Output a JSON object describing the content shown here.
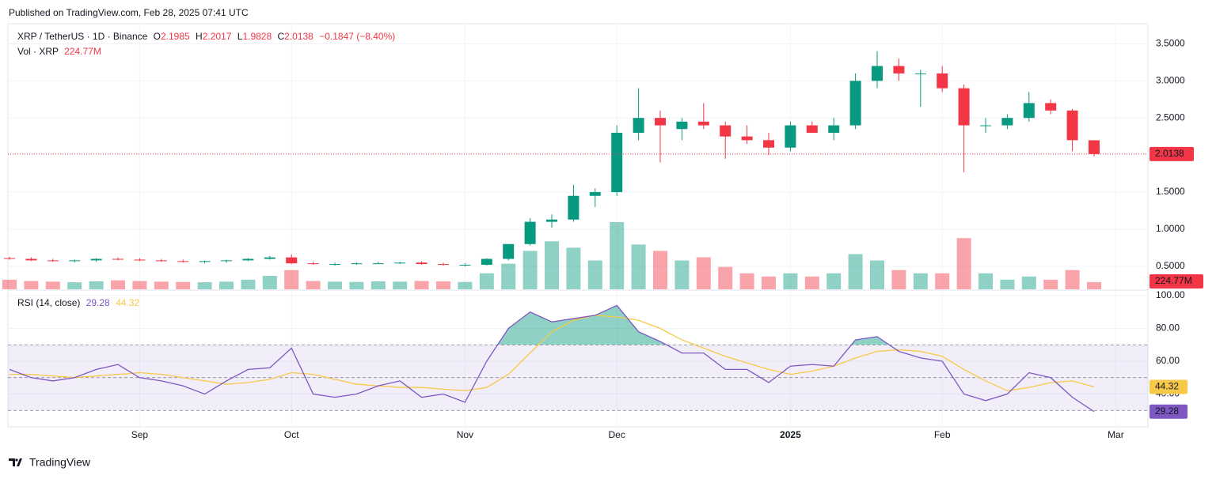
{
  "header": {
    "published": "Published on TradingView.com, Feb 28, 2025 07:41 UTC",
    "brand": "TradingView"
  },
  "chart_data": {
    "type": "candlestick",
    "symbol": "XRP / TetherUS · 1D · Binance",
    "ohlc_letters": {
      "open": "O",
      "high": "H",
      "low": "L",
      "close": "C"
    },
    "change_label": "−0.1847 (−8.40%)",
    "volume_title": "Vol · XRP",
    "volume_last_label": "224.77M",
    "rsi_title": "RSI (14, close)",
    "up_color": "#089981",
    "down_color": "#f23645",
    "rsi_color": "#7e57c2",
    "rsi_ma_color": "#f7c948",
    "categories": [
      null,
      null,
      null,
      null,
      null,
      null,
      "Sep",
      null,
      null,
      null,
      null,
      null,
      null,
      "Oct",
      null,
      null,
      null,
      null,
      null,
      null,
      null,
      "Nov",
      null,
      null,
      null,
      null,
      null,
      null,
      "Dec",
      null,
      null,
      null,
      null,
      null,
      null,
      null,
      "2025",
      null,
      null,
      null,
      null,
      null,
      null,
      "Feb",
      null,
      null,
      null,
      null,
      null,
      null,
      null,
      "Mar"
    ],
    "open": [
      0.61,
      0.6,
      0.58,
      0.57,
      0.58,
      0.6,
      0.59,
      0.58,
      0.57,
      0.56,
      0.57,
      0.58,
      0.6,
      0.62,
      0.54,
      0.53,
      0.53,
      0.54,
      0.54,
      0.55,
      0.53,
      0.52,
      0.52,
      0.6,
      0.8,
      1.1,
      1.13,
      1.45,
      1.5,
      2.3,
      2.5,
      2.35,
      2.45,
      2.4,
      2.25,
      2.2,
      2.1,
      2.4,
      2.3,
      2.4,
      3.0,
      3.2,
      3.1,
      3.1,
      2.9,
      2.4,
      2.4,
      2.5,
      2.7,
      2.6,
      2.1985,
      null
    ],
    "high": [
      0.63,
      0.62,
      0.6,
      0.59,
      0.61,
      0.62,
      0.61,
      0.6,
      0.59,
      0.58,
      0.59,
      0.61,
      0.64,
      0.66,
      0.56,
      0.55,
      0.55,
      0.56,
      0.56,
      0.57,
      0.55,
      0.54,
      0.61,
      0.8,
      1.15,
      1.2,
      1.6,
      1.55,
      2.4,
      2.9,
      2.6,
      2.5,
      2.7,
      2.45,
      2.4,
      2.3,
      2.45,
      2.45,
      2.5,
      3.1,
      3.4,
      3.3,
      3.15,
      3.2,
      2.95,
      2.5,
      2.55,
      2.85,
      2.75,
      2.62,
      2.2017,
      null
    ],
    "low": [
      0.59,
      0.57,
      0.56,
      0.55,
      0.56,
      0.58,
      0.57,
      0.56,
      0.55,
      0.54,
      0.55,
      0.57,
      0.59,
      0.53,
      0.52,
      0.51,
      0.52,
      0.53,
      0.53,
      0.52,
      0.51,
      0.5,
      0.51,
      0.58,
      0.78,
      1.02,
      1.1,
      1.3,
      1.45,
      2.2,
      1.9,
      2.2,
      2.35,
      1.95,
      2.15,
      2.0,
      2.05,
      2.3,
      2.2,
      2.35,
      2.9,
      3.0,
      2.65,
      2.85,
      1.77,
      2.3,
      2.35,
      2.45,
      2.55,
      2.05,
      1.9828,
      null
    ],
    "close": [
      0.6,
      0.58,
      0.57,
      0.58,
      0.6,
      0.59,
      0.58,
      0.57,
      0.56,
      0.57,
      0.58,
      0.6,
      0.62,
      0.54,
      0.53,
      0.53,
      0.54,
      0.54,
      0.55,
      0.53,
      0.52,
      0.52,
      0.6,
      0.8,
      1.1,
      1.13,
      1.45,
      1.5,
      2.3,
      2.5,
      2.4,
      2.45,
      2.4,
      2.25,
      2.2,
      2.1,
      2.4,
      2.3,
      2.4,
      3.0,
      3.2,
      3.1,
      3.1,
      2.9,
      2.4,
      2.4,
      2.5,
      2.7,
      2.6,
      2.2,
      2.0138,
      null
    ],
    "volume": [
      300,
      260,
      240,
      220,
      250,
      280,
      260,
      240,
      230,
      220,
      240,
      300,
      420,
      600,
      260,
      240,
      230,
      250,
      240,
      260,
      250,
      230,
      500,
      800,
      1200,
      1500,
      1300,
      900,
      2100,
      1400,
      1200,
      900,
      1000,
      700,
      500,
      400,
      500,
      400,
      500,
      1100,
      900,
      600,
      500,
      500,
      1600,
      500,
      300,
      400,
      300,
      600,
      224.77,
      null
    ],
    "vlim": [
      0,
      8300
    ],
    "rsi": [
      55,
      50,
      48,
      50,
      55,
      58,
      50,
      48,
      45,
      40,
      48,
      55,
      56,
      68,
      40,
      38,
      40,
      45,
      48,
      38,
      40,
      35,
      60,
      80,
      90,
      84,
      86,
      88,
      94,
      78,
      72,
      65,
      65,
      55,
      55,
      47,
      57,
      58,
      57,
      73,
      75,
      66,
      62,
      60,
      40,
      36,
      40,
      53,
      50,
      38,
      29.28,
      null
    ],
    "rsi_ma": [
      52,
      52,
      51,
      50,
      51,
      52,
      53,
      52,
      50,
      48,
      46,
      47,
      49,
      53,
      52,
      49,
      46,
      45,
      44,
      44,
      43,
      42,
      44,
      52,
      65,
      78,
      85,
      88,
      87,
      85,
      80,
      73,
      68,
      63,
      59,
      55,
      52,
      54,
      57,
      62,
      66,
      67,
      66,
      63,
      55,
      48,
      42,
      44,
      47,
      48,
      44.32,
      null
    ],
    "rsi_levels": [
      30,
      50,
      70
    ],
    "ylim": [
      0.19,
      3.77
    ],
    "yticks": [
      {
        "value": 0.5,
        "label": "0.5000"
      },
      {
        "value": 1.0,
        "label": "1.0000"
      },
      {
        "value": 1.5,
        "label": "1.5000"
      },
      {
        "value": 2.5,
        "label": "2.5000"
      },
      {
        "value": 3.0,
        "label": "3.0000"
      },
      {
        "value": 3.5,
        "label": "3.5000"
      }
    ],
    "rsi_ylim": [
      20,
      102.9
    ],
    "rsi_yticks": [
      {
        "value": 40,
        "label": "40.00"
      },
      {
        "value": 60,
        "label": "60.00"
      },
      {
        "value": 80,
        "label": "80.00"
      },
      {
        "value": 100,
        "label": "100.00"
      }
    ]
  }
}
